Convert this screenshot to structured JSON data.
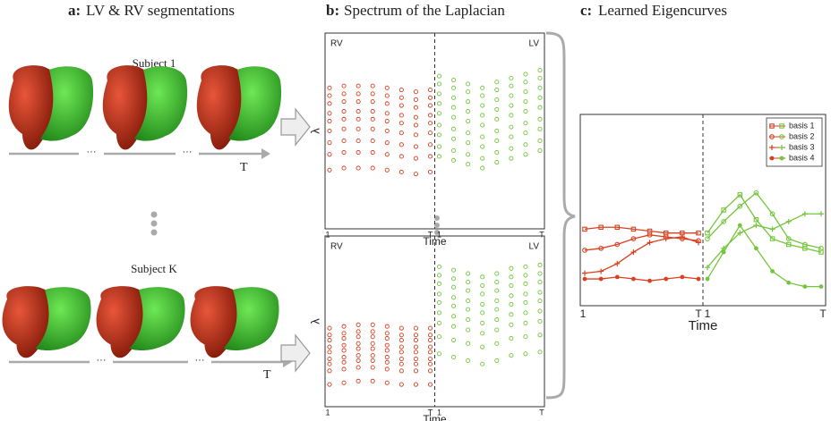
{
  "panels": [
    {
      "letter": "a:",
      "title": "LV & RV segmentations"
    },
    {
      "letter": "b:",
      "title": "Spectrum of the Laplacian"
    },
    {
      "letter": "c:",
      "title": "Learned Eigencurves"
    }
  ],
  "panel_a": {
    "subjects": [
      "Subject 1",
      "Subject K"
    ],
    "time_label": "T",
    "ellipsis": "···"
  },
  "chart_data": [
    {
      "type": "dot-plot",
      "region_labels": [
        "RV",
        "LV"
      ],
      "ylabel": "λ",
      "xlabel": "Time",
      "xtick_labels": [
        "1",
        "T",
        "1",
        "T"
      ],
      "ylim": [
        0,
        100
      ],
      "segment_colors": [
        "#d8401f",
        "#74c63a"
      ],
      "series": [
        {
          "values": [
            72,
            73,
            73,
            73,
            72,
            71,
            70,
            71,
            78,
            76,
            74,
            72,
            75,
            77,
            79,
            81
          ]
        },
        {
          "values": [
            68,
            69,
            69,
            69,
            68,
            67,
            66,
            67,
            74,
            72,
            70,
            68,
            71,
            73,
            75,
            77
          ]
        },
        {
          "values": [
            64,
            65,
            65,
            65,
            64,
            63,
            62,
            63,
            69,
            67,
            65,
            63,
            66,
            68,
            70,
            72
          ]
        },
        {
          "values": [
            59,
            60,
            60,
            60,
            59,
            58,
            57,
            58,
            64,
            62,
            60,
            58,
            61,
            63,
            65,
            67
          ]
        },
        {
          "values": [
            55,
            56,
            56,
            56,
            55,
            54,
            53,
            54,
            59,
            57,
            55,
            53,
            56,
            58,
            60,
            62
          ]
        },
        {
          "values": [
            50,
            51,
            51,
            51,
            50,
            49,
            48,
            49,
            53,
            51,
            49,
            47,
            50,
            52,
            54,
            56
          ]
        },
        {
          "values": [
            44,
            45,
            45,
            45,
            44,
            43,
            42,
            43,
            48,
            46,
            44,
            42,
            45,
            47,
            49,
            51
          ]
        },
        {
          "values": [
            38,
            39,
            39,
            39,
            38,
            37,
            36,
            37,
            42,
            40,
            38,
            36,
            39,
            41,
            43,
            45
          ]
        },
        {
          "values": [
            30,
            31,
            31,
            31,
            30,
            29,
            28,
            29,
            37,
            35,
            33,
            31,
            34,
            36,
            38,
            40
          ]
        }
      ]
    },
    {
      "type": "dot-plot",
      "region_labels": [
        "RV",
        "LV"
      ],
      "ylabel": "λ",
      "xlabel": "Time",
      "xtick_labels": [
        "1",
        "T",
        "1",
        "T"
      ],
      "ylim": [
        0,
        100
      ],
      "segment_colors": [
        "#d8401f",
        "#74c63a"
      ],
      "series": [
        {
          "values": [
            46,
            47,
            48,
            48,
            47,
            46,
            46,
            46,
            82,
            80,
            78,
            76,
            78,
            81,
            82,
            83
          ]
        },
        {
          "values": [
            42,
            43,
            44,
            44,
            43,
            42,
            42,
            42,
            77,
            75,
            73,
            71,
            73,
            76,
            77,
            78
          ]
        },
        {
          "values": [
            39,
            40,
            41,
            41,
            40,
            39,
            39,
            39,
            72,
            70,
            68,
            66,
            68,
            71,
            72,
            73
          ]
        },
        {
          "values": [
            35,
            36,
            37,
            37,
            36,
            35,
            35,
            35,
            66,
            64,
            62,
            60,
            62,
            65,
            66,
            67
          ]
        },
        {
          "values": [
            32,
            33,
            34,
            34,
            33,
            32,
            32,
            32,
            61,
            59,
            57,
            55,
            57,
            60,
            61,
            62
          ]
        },
        {
          "values": [
            28,
            29,
            30,
            30,
            29,
            28,
            28,
            28,
            55,
            53,
            51,
            49,
            51,
            54,
            55,
            56
          ]
        },
        {
          "values": [
            25,
            26,
            27,
            27,
            26,
            25,
            25,
            25,
            49,
            47,
            45,
            43,
            45,
            48,
            49,
            50
          ]
        },
        {
          "values": [
            21,
            22,
            23,
            23,
            22,
            21,
            21,
            21,
            41,
            39,
            37,
            35,
            37,
            40,
            41,
            42
          ]
        },
        {
          "values": [
            13,
            14,
            15,
            15,
            14,
            13,
            13,
            13,
            31,
            29,
            27,
            25,
            27,
            30,
            31,
            32
          ]
        }
      ]
    },
    {
      "type": "line",
      "xlabel": "Time",
      "xtick_labels": [
        "1",
        "T",
        "1",
        "T"
      ],
      "ylim": [
        0,
        100
      ],
      "segment_colors": [
        "#d8401f",
        "#74c63a"
      ],
      "legend": "upper right",
      "series": [
        {
          "name": "basis 1",
          "marker": "square",
          "values": [
            40,
            41,
            41,
            40,
            39,
            38,
            38,
            38,
            38,
            50,
            58,
            45,
            35,
            32,
            30,
            28
          ]
        },
        {
          "name": "basis 2",
          "marker": "circle",
          "values": [
            29,
            30,
            32,
            35,
            37,
            36,
            35,
            34,
            35,
            44,
            52,
            59,
            48,
            35,
            32,
            30
          ]
        },
        {
          "name": "basis 3",
          "marker": "plus",
          "values": [
            17,
            18,
            22,
            28,
            33,
            35,
            36,
            33,
            20,
            30,
            38,
            42,
            40,
            44,
            48,
            48
          ]
        },
        {
          "name": "basis 4",
          "marker": "dot",
          "values": [
            14,
            14,
            15,
            14,
            13,
            14,
            15,
            14,
            14,
            28,
            42,
            30,
            18,
            12,
            10,
            10
          ]
        }
      ]
    }
  ]
}
